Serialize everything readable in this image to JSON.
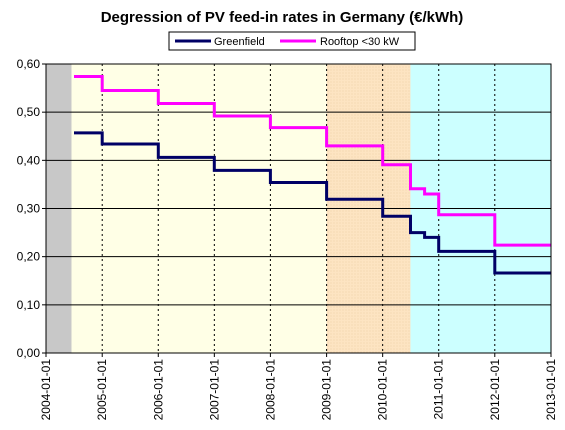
{
  "chart_data": {
    "type": "line",
    "title": "Degression of PV feed-in rates in Germany (€/kWh)",
    "xlabel": "",
    "ylabel": "",
    "ylim": [
      0,
      0.6
    ],
    "yticks": [
      "0,00",
      "0,10",
      "0,20",
      "0,30",
      "0,40",
      "0,50",
      "0,60"
    ],
    "ytick_values": [
      0,
      0.1,
      0.2,
      0.3,
      0.4,
      0.5,
      0.6
    ],
    "xlim": [
      "2004-01-01",
      "2013-01-01"
    ],
    "xticks": [
      "2004-01-01",
      "2005-01-01",
      "2006-01-01",
      "2007-01-01",
      "2008-01-01",
      "2009-01-01",
      "2010-01-01",
      "2011-01-01",
      "2012-01-01",
      "2013-01-01"
    ],
    "grid": "horizontal and vertical",
    "legend_position": "top",
    "background_bands": [
      {
        "from": "2004-01-01",
        "to": "2004-06-15",
        "color": "#c8c8c8"
      },
      {
        "from": "2004-06-15",
        "to": "2009-01-01",
        "color": "#ffffe6"
      },
      {
        "from": "2009-01-01",
        "to": "2010-07-01",
        "color": "#fde4c2"
      },
      {
        "from": "2010-07-01",
        "to": "2013-01-01",
        "color": "#ccffff"
      }
    ],
    "series": [
      {
        "name": "Greenfield",
        "color": "#000066",
        "points": [
          [
            "2004-07-01",
            0.457
          ],
          [
            "2005-01-01",
            0.457
          ],
          [
            "2005-01-01",
            0.434
          ],
          [
            "2006-01-01",
            0.434
          ],
          [
            "2006-01-01",
            0.406
          ],
          [
            "2007-01-01",
            0.406
          ],
          [
            "2007-01-01",
            0.379
          ],
          [
            "2008-01-01",
            0.379
          ],
          [
            "2008-01-01",
            0.354
          ],
          [
            "2009-01-01",
            0.354
          ],
          [
            "2009-01-01",
            0.319
          ],
          [
            "2010-01-01",
            0.319
          ],
          [
            "2010-01-01",
            0.284
          ],
          [
            "2010-07-01",
            0.284
          ],
          [
            "2010-07-01",
            0.25
          ],
          [
            "2010-10-01",
            0.25
          ],
          [
            "2010-10-01",
            0.24
          ],
          [
            "2011-01-01",
            0.24
          ],
          [
            "2011-01-01",
            0.211
          ],
          [
            "2012-01-01",
            0.211
          ],
          [
            "2012-01-01",
            0.166
          ],
          [
            "2013-01-01",
            0.166
          ]
        ]
      },
      {
        "name": "Rooftop <30 kW",
        "color": "#ff00ff",
        "points": [
          [
            "2004-07-01",
            0.574
          ],
          [
            "2005-01-01",
            0.574
          ],
          [
            "2005-01-01",
            0.545
          ],
          [
            "2006-01-01",
            0.545
          ],
          [
            "2006-01-01",
            0.518
          ],
          [
            "2007-01-01",
            0.518
          ],
          [
            "2007-01-01",
            0.492
          ],
          [
            "2008-01-01",
            0.492
          ],
          [
            "2008-01-01",
            0.468
          ],
          [
            "2009-01-01",
            0.468
          ],
          [
            "2009-01-01",
            0.43
          ],
          [
            "2010-01-01",
            0.43
          ],
          [
            "2010-01-01",
            0.391
          ],
          [
            "2010-07-01",
            0.391
          ],
          [
            "2010-07-01",
            0.341
          ],
          [
            "2010-10-01",
            0.341
          ],
          [
            "2010-10-01",
            0.33
          ],
          [
            "2011-01-01",
            0.33
          ],
          [
            "2011-01-01",
            0.287
          ],
          [
            "2012-01-01",
            0.287
          ],
          [
            "2012-01-01",
            0.224
          ],
          [
            "2013-01-01",
            0.224
          ]
        ]
      }
    ]
  }
}
